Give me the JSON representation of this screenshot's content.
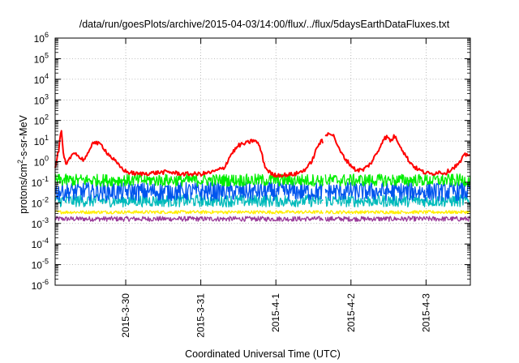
{
  "chart_data": {
    "type": "line",
    "title": "/data/run/goesPlots/archive/2015-04-03/14:00/flux/../flux/5daysEarthDataFluxes.txt",
    "xlabel": "Coordinated Universal Time (UTC)",
    "ylabel": {
      "prefix": "protons/cm",
      "superscript": "2",
      "suffix": "-s-sr-MeV"
    },
    "y_scale": "log",
    "ylim_exponent": [
      -6,
      6
    ],
    "y_ticks": [
      {
        "base": "10",
        "exp": "-6"
      },
      {
        "base": "10",
        "exp": "-5"
      },
      {
        "base": "10",
        "exp": "-4"
      },
      {
        "base": "10",
        "exp": "-3"
      },
      {
        "base": "10",
        "exp": "-2"
      },
      {
        "base": "10",
        "exp": "-1"
      },
      {
        "base": "10",
        "exp": "0"
      },
      {
        "base": "10",
        "exp": "1"
      },
      {
        "base": "10",
        "exp": "2"
      },
      {
        "base": "10",
        "exp": "3"
      },
      {
        "base": "10",
        "exp": "4"
      },
      {
        "base": "10",
        "exp": "5"
      },
      {
        "base": "10",
        "exp": "6"
      }
    ],
    "x_range_days": [
      0,
      5.53
    ],
    "x_ticks": [
      {
        "label": "2015-3-30",
        "day": 0.94
      },
      {
        "label": "2015-3-31",
        "day": 1.94
      },
      {
        "label": "2015-4-1",
        "day": 2.94
      },
      {
        "label": "2015-4-2",
        "day": 3.94
      },
      {
        "label": "2015-4-3",
        "day": 4.94
      }
    ],
    "grid": true,
    "data_gap_days": [
      3.57,
      3.6
    ],
    "series": [
      {
        "color": "#ff0000",
        "noise": 0.1,
        "points": [
          [
            0,
            -0.3
          ],
          [
            0.05,
            0.6
          ],
          [
            0.08,
            1.6
          ],
          [
            0.11,
            0.3
          ],
          [
            0.15,
            -0.2
          ],
          [
            0.2,
            0.2
          ],
          [
            0.26,
            0.5
          ],
          [
            0.32,
            0.2
          ],
          [
            0.38,
            0.1
          ],
          [
            0.45,
            0.4
          ],
          [
            0.5,
            1.0
          ],
          [
            0.55,
            0.9
          ],
          [
            0.62,
            0.8
          ],
          [
            0.7,
            0.4
          ],
          [
            0.78,
            0.1
          ],
          [
            0.85,
            -0.2
          ],
          [
            0.95,
            -0.5
          ],
          [
            1.1,
            -0.6
          ],
          [
            1.3,
            -0.55
          ],
          [
            1.5,
            -0.5
          ],
          [
            1.7,
            -0.6
          ],
          [
            1.95,
            -0.6
          ],
          [
            2.1,
            -0.5
          ],
          [
            2.25,
            -0.3
          ],
          [
            2.35,
            0.4
          ],
          [
            2.45,
            0.8
          ],
          [
            2.55,
            0.9
          ],
          [
            2.65,
            1.05
          ],
          [
            2.72,
            0.8
          ],
          [
            2.8,
            -0.3
          ],
          [
            2.9,
            -0.65
          ],
          [
            3.05,
            -0.65
          ],
          [
            3.2,
            -0.6
          ],
          [
            3.3,
            -0.45
          ],
          [
            3.38,
            -0.2
          ],
          [
            3.44,
            0.2
          ],
          [
            3.5,
            0.8
          ],
          [
            3.55,
            1.0
          ],
          [
            3.57,
            0.9
          ],
          [
            3.6,
            1.2
          ],
          [
            3.65,
            1.45
          ],
          [
            3.72,
            1.2
          ],
          [
            3.78,
            0.6
          ],
          [
            3.85,
            0.2
          ],
          [
            3.92,
            -0.1
          ],
          [
            4.0,
            -0.4
          ],
          [
            4.1,
            -0.4
          ],
          [
            4.2,
            -0.1
          ],
          [
            4.3,
            0.5
          ],
          [
            4.37,
            1.1
          ],
          [
            4.42,
            1.2
          ],
          [
            4.47,
            1.0
          ],
          [
            4.52,
            1.25
          ],
          [
            4.58,
            0.9
          ],
          [
            4.65,
            0.4
          ],
          [
            4.72,
            0.0
          ],
          [
            4.8,
            -0.3
          ],
          [
            4.9,
            -0.5
          ],
          [
            5.0,
            -0.6
          ],
          [
            5.1,
            -0.5
          ],
          [
            5.2,
            -0.55
          ],
          [
            5.3,
            -0.3
          ],
          [
            5.38,
            -0.1
          ],
          [
            5.45,
            0.3
          ],
          [
            5.53,
            0.4
          ]
        ]
      },
      {
        "color": "#00ee00",
        "base": -0.9,
        "noise": 0.3
      },
      {
        "color": "#0055ee",
        "base": -1.45,
        "noise": 0.45
      },
      {
        "color": "#00bbbb",
        "base": -1.9,
        "noise": 0.3
      },
      {
        "color": "#ffee00",
        "base": -2.45,
        "noise": 0.08
      },
      {
        "color": "#9a3a9a",
        "base": -2.78,
        "noise": 0.12
      }
    ]
  }
}
